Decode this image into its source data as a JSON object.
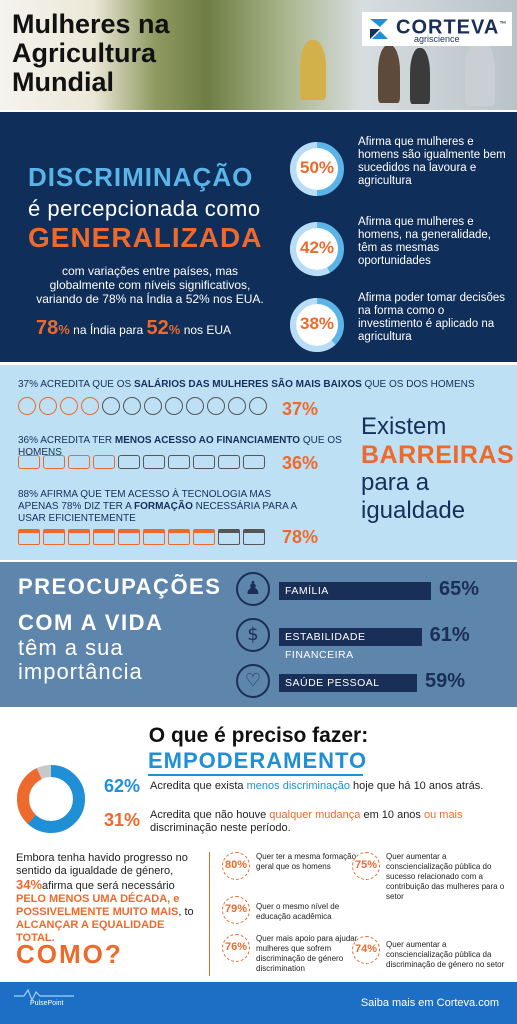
{
  "header": {
    "title_lines": [
      "Mulheres na",
      "Agricultura",
      "Mundial"
    ],
    "logo_name": "CORTEVA",
    "logo_tm": "™",
    "logo_sub": "agriscience"
  },
  "discrimination": {
    "headline": "DISCRIMINAÇÃO",
    "middle": "é percepcionada como",
    "emphasis": "GENERALIZADA",
    "variation": "com variações entre países, mas globalmente com níveis significativos, variando de 78% na Índia a 52% nos EUA.",
    "range_a_value": "78",
    "range_a_unit": "%",
    "range_a_text": " na Índia para ",
    "range_b_value": "52",
    "range_b_unit": "%",
    "range_b_text": " nos EUA",
    "stats": [
      {
        "value": "50%",
        "percent": 50,
        "text": "Afirma que mulheres e homens são igualmente bem sucedidos na lavoura e agricultura"
      },
      {
        "value": "42%",
        "percent": 42,
        "text": "Afirma que mulheres e homens, na generalidade, têm as mesmas oportunidades"
      },
      {
        "value": "38%",
        "percent": 38,
        "text": "Afirma poder tomar decisões na forma como o investimento é aplicado na agricultura"
      }
    ]
  },
  "barriers": {
    "line1_pre": "37% ACREDITA QUE OS ",
    "line1_bold": "SALÁRIOS DAS MULHERES SÃO MAIS BAIXOS",
    "line1_post": " QUE OS DOS HOMENS",
    "line1_pct": "37%",
    "line2_pre": "36% ACREDITA TER ",
    "line2_bold": "MENOS ACESSO AO FINANCIAMENTO",
    "line2_post": " QUE OS HOMENS",
    "line2_pct": "36%",
    "line3_pre": "88% AFIRMA QUE TEM ACESSO À TECNOLOGIA MAS APENAS 78% DIZ TER A ",
    "line3_bold": "FORMAÇÃO",
    "line3_post": " NECESSÁRIA PARA A USAR EFICIENTEMENTE",
    "line3_pct": "78%",
    "title_1": "Existem",
    "title_2": "BARREIRAS",
    "title_3": "para a",
    "title_4": "igualdade",
    "coin_icon": "coin-dollar-euro-icon",
    "hand_icon": "hand-coin-icon",
    "laptop_icon": "laptop-icon"
  },
  "concerns": {
    "title_1": "PREOCUPAÇÕES",
    "title_2": "COM A VIDA",
    "title_3": "têm a sua",
    "title_4": "importância",
    "items": [
      {
        "label": "FAMÍLIA",
        "value": "65%",
        "percent": 65,
        "icon": "family-icon"
      },
      {
        "label": "ESTABILIDADE FINANCEIRA",
        "value": "61%",
        "percent": 61,
        "icon": "dollar-icon"
      },
      {
        "label": "SAÚDE PESSOAL",
        "value": "59%",
        "percent": 59,
        "icon": "heart-icon"
      }
    ]
  },
  "todo": {
    "title": "O que é preciso fazer:",
    "subtitle": "EMPODERAMENTO",
    "p62": "62%",
    "p62_pre": "Acredita que exista ",
    "p62_hl": "menos discriminação",
    "p62_post": " hoje que há 10 anos atrás.",
    "p31": "31%",
    "p31_pre": "Acredita que não houve ",
    "p31_hl": "qualquer mudança",
    "p31_mid": " em 10 anos ",
    "p31_hl2": "ou mais",
    "p31_post": " discriminação neste período.",
    "donut_values": [
      62,
      31
    ],
    "progress_pre": "Embora tenha havido progresso no sentido da igualdade de género, ",
    "progress_pct": "34%",
    "progress_mid": "afirma que será necessário ",
    "progress_hl": "PELO MENOS UMA DÉCADA, e POSSIVELMENTE MUITO MAIS",
    "progress_mid2": ", to ",
    "progress_hl2": "ALCANÇAR A EQUALIDADE TOTAL.",
    "how": "COMO?",
    "items": [
      {
        "value": "80%",
        "text": "Quer ter a mesma formação geral que os homens"
      },
      {
        "value": "79%",
        "text": "Quer o mesmo nível de educação acadêmica"
      },
      {
        "value": "76%",
        "text": "Quer mais apoio para ajudar mulheres que sofrem discriminação de género discrimination"
      },
      {
        "value": "75%",
        "text": "Quer aumentar a consciencialização pública do sucesso relacionado com a contribuição das mulheres para o setor"
      },
      {
        "value": "74%",
        "text": "Quer aumentar a consciencialização pública da discriminação de género no setor"
      }
    ]
  },
  "footer": {
    "brand": "PulsePoint",
    "cta": "Saiba mais em Corteva.com"
  },
  "colors": {
    "navy": "#0f2f5a",
    "orange": "#ee6a2c",
    "light_blue": "#bde0f5",
    "steel_blue": "#5e85ac",
    "accent_blue": "#1f8fd6"
  }
}
